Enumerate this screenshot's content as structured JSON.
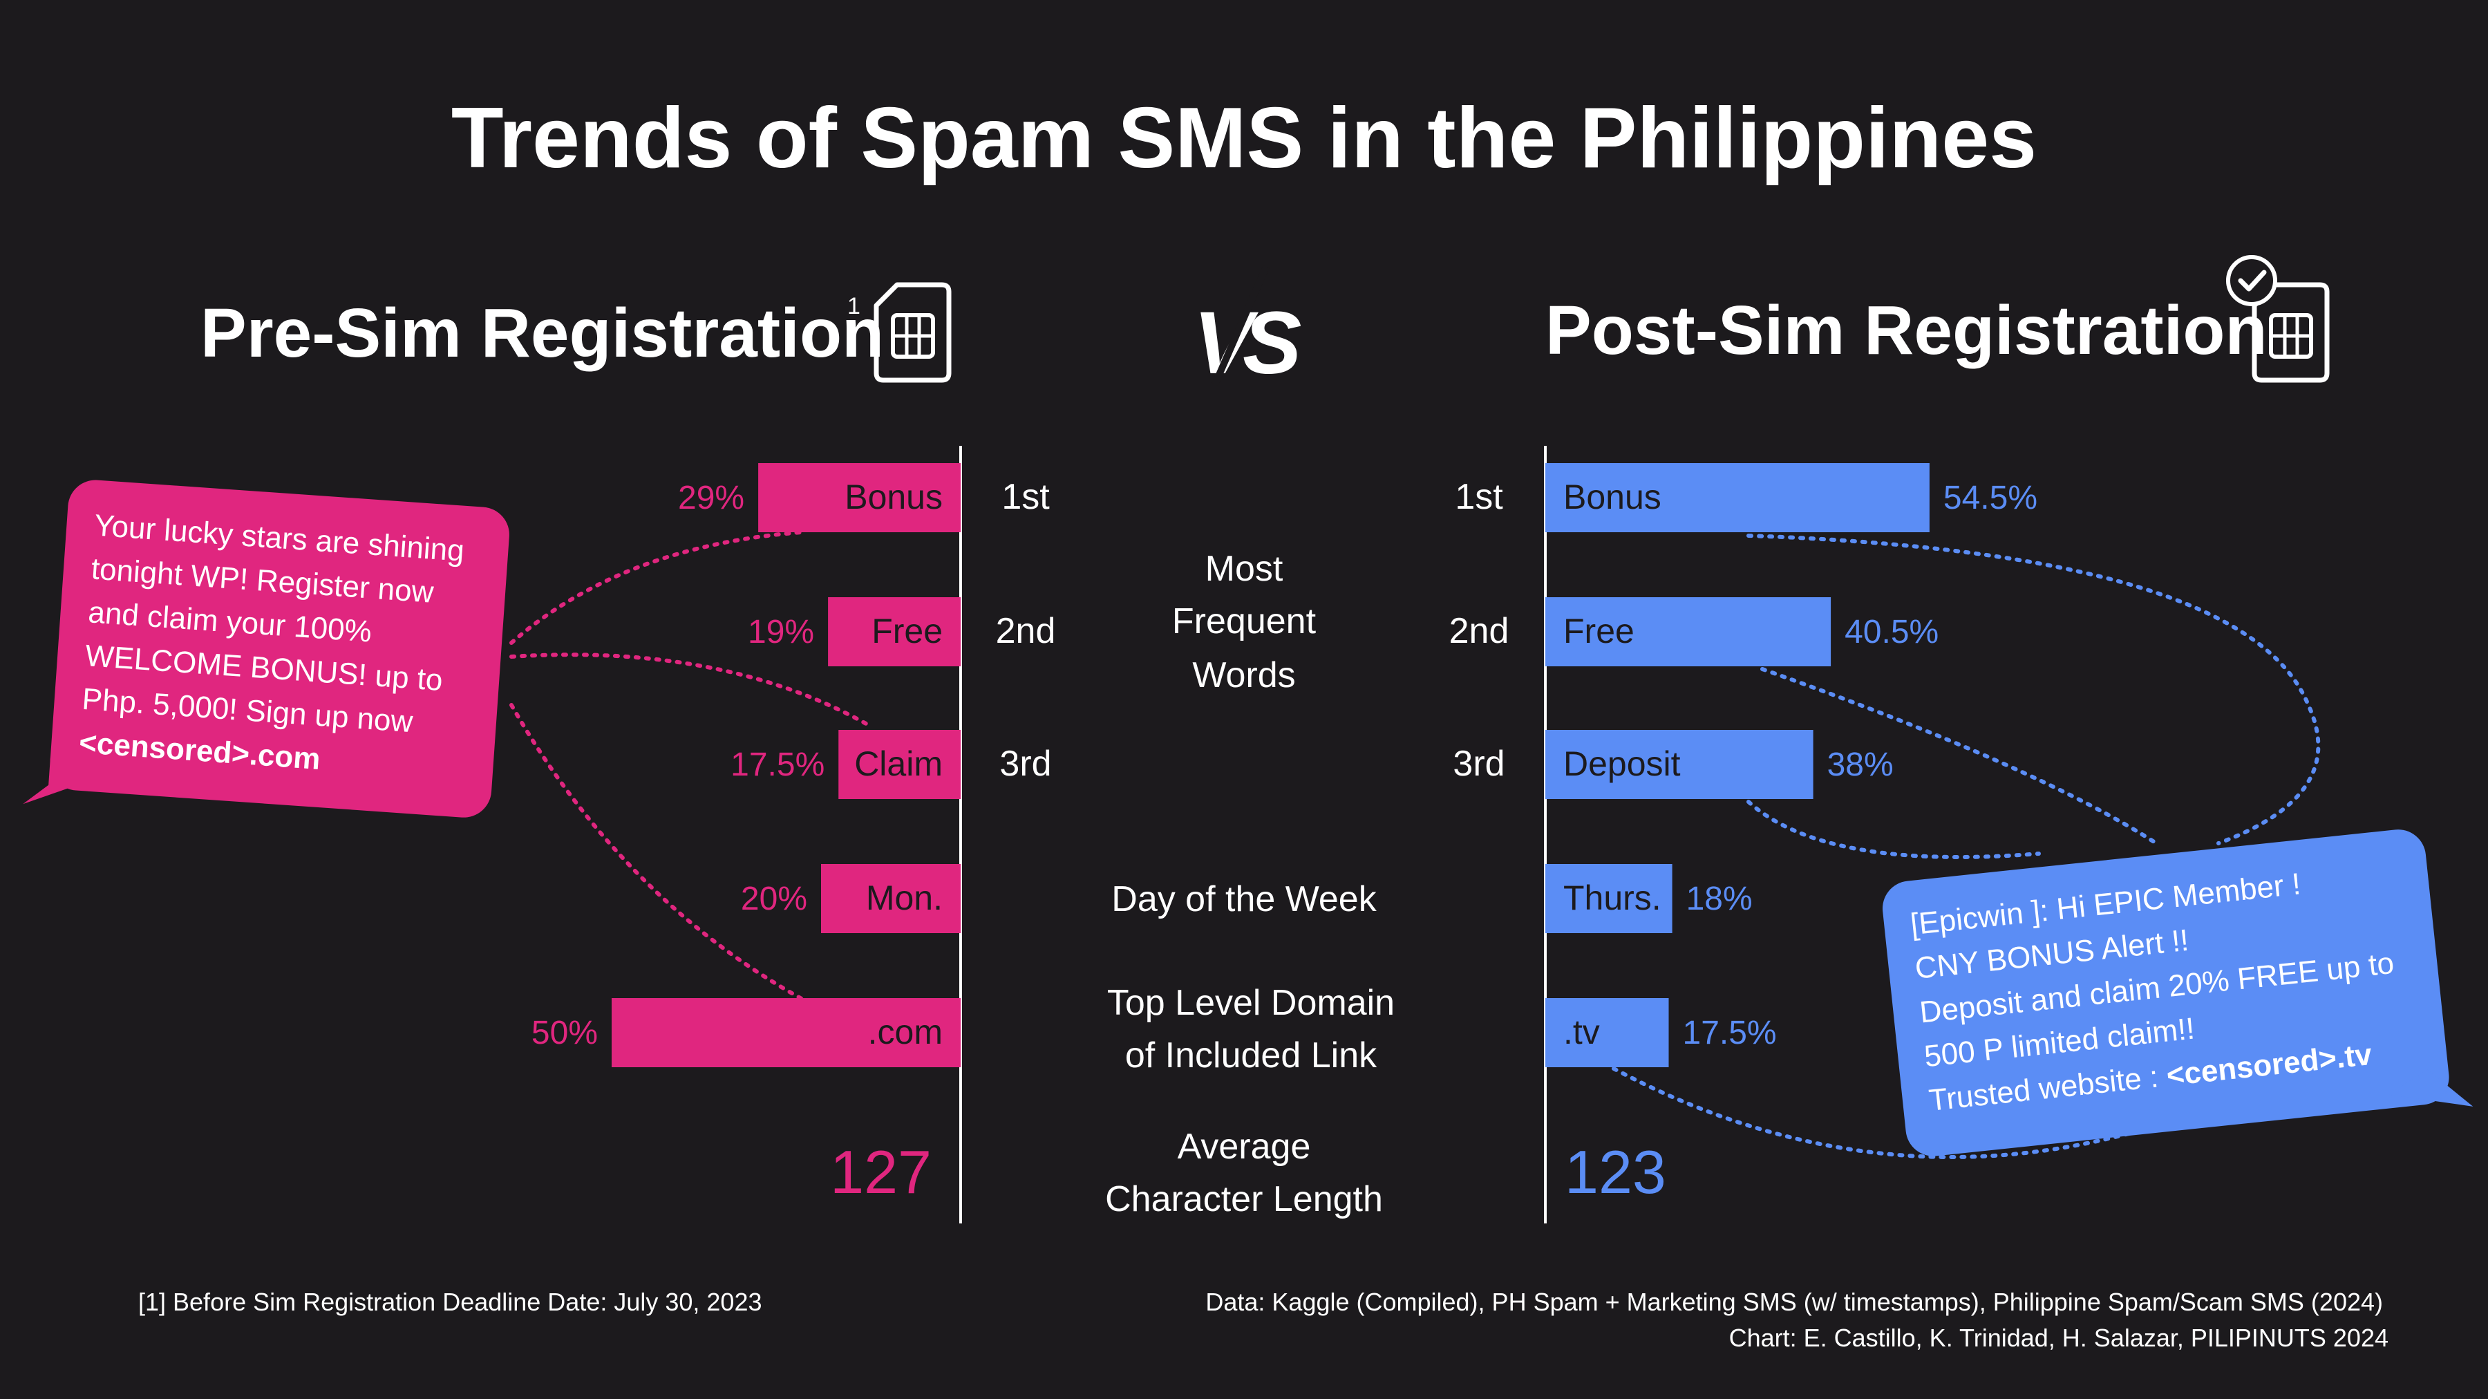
{
  "title": "Trends of Spam SMS in the Philippines",
  "left_heading": "Pre-Sim Registration",
  "left_heading_footnote": "1",
  "vs_label": "VS",
  "right_heading": "Post-Sim Registration",
  "colors": {
    "background": "#1c1a1d",
    "pre": "#e0267f",
    "post": "#5b8df5",
    "text": "#ffffff"
  },
  "icons": [
    "sim-card-icon",
    "sim-card-check-icon",
    "vs-icon"
  ],
  "categories": {
    "frequent_words": [
      "Most",
      "Frequent",
      "Words"
    ],
    "day_of_week": "Day of the Week",
    "tld": [
      "Top Level Domain",
      "of Included Link"
    ],
    "avg_length": [
      "Average",
      "Character Length"
    ]
  },
  "ranks": [
    "1st",
    "2nd",
    "3rd"
  ],
  "chart_data": {
    "type": "bar",
    "pre": {
      "frequent_words": [
        {
          "word": "Bonus",
          "label": "29%",
          "value": 29
        },
        {
          "word": "Free",
          "label": "19%",
          "value": 19
        },
        {
          "word": "Claim",
          "label": "17.5%",
          "value": 17.5
        }
      ],
      "day_of_week": {
        "word": "Mon.",
        "label": "20%",
        "value": 20
      },
      "tld": {
        "word": ".com",
        "label": "50%",
        "value": 50
      },
      "avg_length": "127"
    },
    "post": {
      "frequent_words": [
        {
          "word": "Bonus",
          "label": "54.5%",
          "value": 54.5
        },
        {
          "word": "Free",
          "label": "40.5%",
          "value": 40.5
        },
        {
          "word": "Deposit",
          "label": "38%",
          "value": 38
        }
      ],
      "day_of_week": {
        "word": "Thurs.",
        "label": "18%",
        "value": 18
      },
      "tld": {
        "word": ".tv",
        "label": "17.5%",
        "value": 17.5
      },
      "avg_length": "123"
    }
  },
  "pre_message": {
    "lines": [
      "Your lucky stars are shining",
      "tonight WP! Register now",
      "and claim your 100%",
      "WELCOME BONUS! up to",
      "Php. 5,000! Sign up now"
    ],
    "bold_line": "<censored>.com"
  },
  "post_message": {
    "lines": [
      "[Epicwin ]: Hi EPIC Member !",
      "CNY BONUS Alert !!",
      "Deposit and claim 20% FREE up to",
      "500 P limited claim!!"
    ],
    "last_prefix": "Trusted website : ",
    "last_bold": "<censored>.tv"
  },
  "footnote": "[1] Before Sim Registration Deadline Date: July 30, 2023",
  "source": "Data: Kaggle (Compiled), PH Spam + Marketing SMS (w/ timestamps), Philippine Spam/Scam SMS (2024)",
  "credit": "Chart: E. Castillo, K. Trinidad, H. Salazar, PILIPINUTS 2024"
}
